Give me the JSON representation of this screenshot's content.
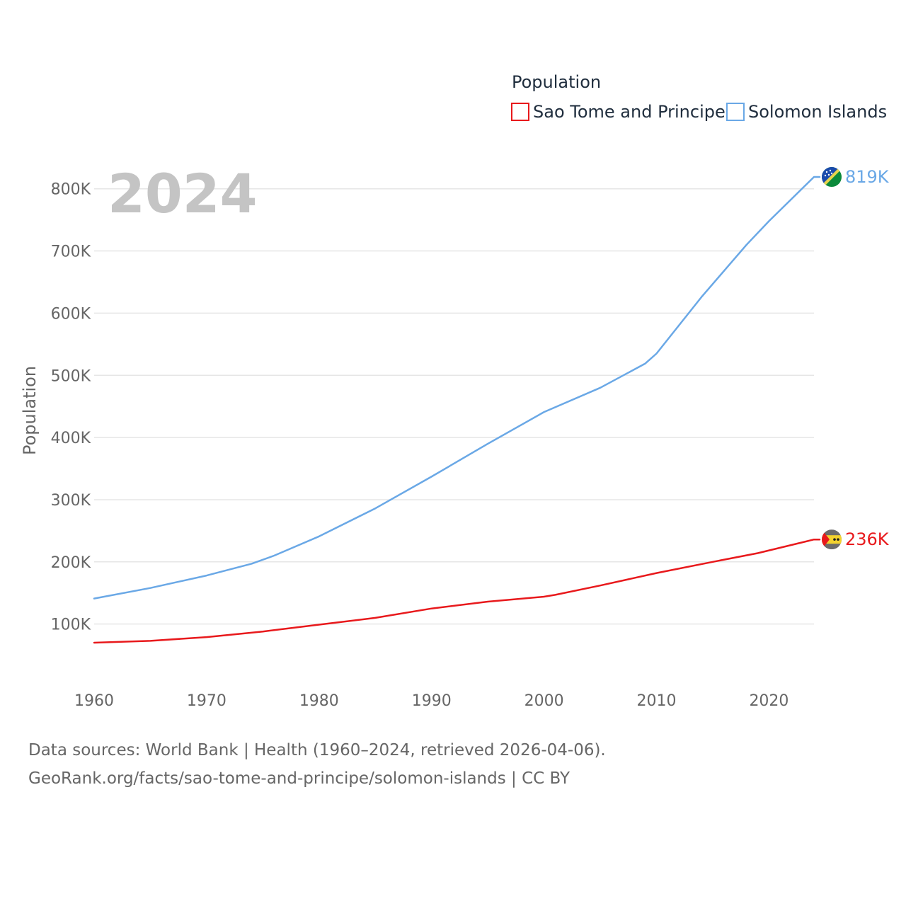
{
  "chart_data": {
    "type": "line",
    "title": "",
    "year_label": "2024",
    "xlabel": "",
    "ylabel": "Population",
    "xlim": [
      1960,
      2024
    ],
    "ylim": [
      0,
      900000
    ],
    "x_ticks": [
      1960,
      1970,
      1980,
      1990,
      2000,
      2010,
      2020
    ],
    "x_tick_labels": [
      "1960",
      "1970",
      "1980",
      "1990",
      "2000",
      "2010",
      "2020"
    ],
    "y_ticks": [
      100000,
      200000,
      300000,
      400000,
      500000,
      600000,
      700000,
      800000
    ],
    "y_tick_labels": [
      "100K",
      "200K",
      "300K",
      "400K",
      "500K",
      "600K",
      "700K",
      "800K"
    ],
    "grid": true,
    "legend": {
      "title": "Population",
      "position": "top-right"
    },
    "series": [
      {
        "name": "Sao Tome and Principe",
        "color": "#e8191c",
        "flag_icon": "flag-sao-tome-and-principe-icon",
        "end_label": "236K",
        "points": [
          [
            1960,
            70000
          ],
          [
            1965,
            73000
          ],
          [
            1970,
            79000
          ],
          [
            1975,
            88000
          ],
          [
            1980,
            99000
          ],
          [
            1985,
            110000
          ],
          [
            1990,
            125000
          ],
          [
            1995,
            136000
          ],
          [
            2000,
            144000
          ],
          [
            2001,
            147000
          ],
          [
            2005,
            162000
          ],
          [
            2010,
            182000
          ],
          [
            2015,
            200000
          ],
          [
            2019,
            214000
          ],
          [
            2024,
            236000
          ]
        ]
      },
      {
        "name": "Solomon Islands",
        "color": "#6aa8e6",
        "flag_icon": "flag-solomon-islands-icon",
        "end_label": "819K",
        "points": [
          [
            1960,
            141000
          ],
          [
            1965,
            158000
          ],
          [
            1970,
            178000
          ],
          [
            1974,
            197000
          ],
          [
            1976,
            210000
          ],
          [
            1980,
            241000
          ],
          [
            1985,
            286000
          ],
          [
            1990,
            337000
          ],
          [
            1995,
            390000
          ],
          [
            2000,
            441000
          ],
          [
            2005,
            480000
          ],
          [
            2009,
            519000
          ],
          [
            2010,
            535000
          ],
          [
            2014,
            626000
          ],
          [
            2018,
            710000
          ],
          [
            2020,
            748000
          ],
          [
            2024,
            819000
          ]
        ]
      }
    ]
  },
  "source": {
    "line1": "Data sources: World Bank | Health (1960–2024, retrieved 2026-04-06).",
    "line2": "GeoRank.org/facts/sao-tome-and-principe/solomon-islands | CC BY"
  }
}
